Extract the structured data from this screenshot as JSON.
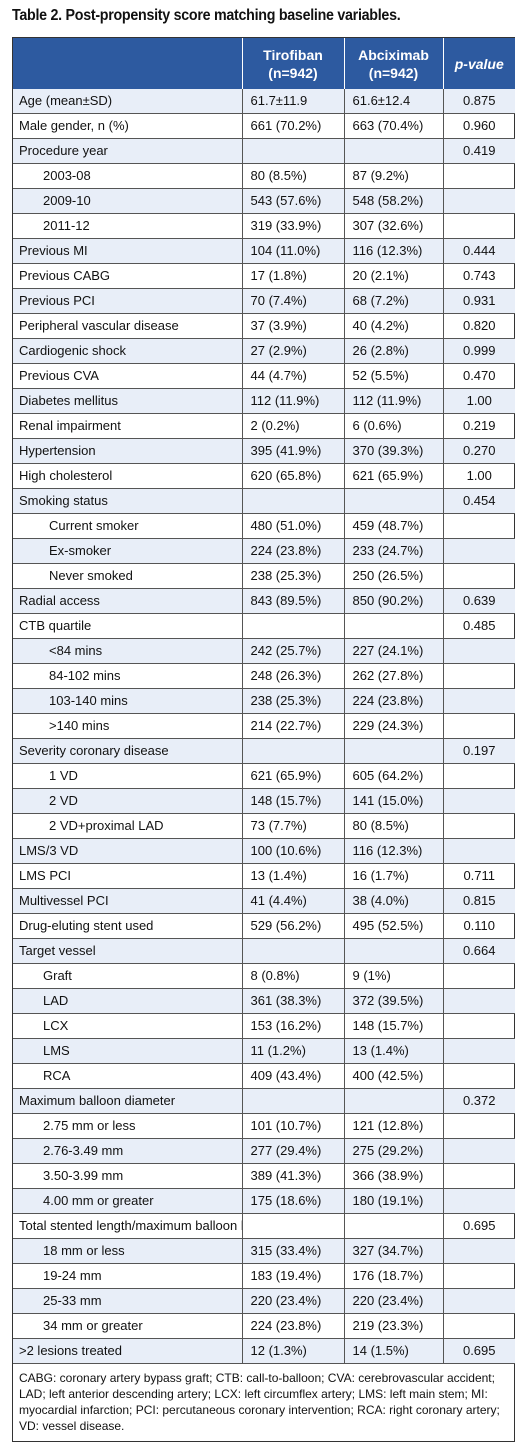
{
  "caption": "Table 2. Post-propensity score matching baseline variables.",
  "header": {
    "col1": "",
    "col2_line1": "Tirofiban",
    "col2_line2": "(n=942)",
    "col3_line1": "Abciximab",
    "col3_line2": "(n=942)",
    "col4": "p-value"
  },
  "rows": [
    {
      "label": "Age (mean±SD)",
      "tirofiban": "61.7±11.9",
      "abciximab": "61.6±12.4",
      "p": "0.875",
      "indent": 0,
      "shaded": true
    },
    {
      "label": "Male gender, n (%)",
      "tirofiban": "661 (70.2%)",
      "abciximab": "663 (70.4%)",
      "p": "0.960",
      "indent": 0,
      "shaded": false
    },
    {
      "label": "Procedure year",
      "tirofiban": "",
      "abciximab": "",
      "p": "0.419",
      "indent": 0,
      "shaded": true
    },
    {
      "label": "2003-08",
      "tirofiban": "80 (8.5%)",
      "abciximab": "87 (9.2%)",
      "p": "",
      "indent": 1,
      "shaded": false
    },
    {
      "label": "2009-10",
      "tirofiban": "543 (57.6%)",
      "abciximab": "548 (58.2%)",
      "p": "",
      "indent": 1,
      "shaded": true
    },
    {
      "label": "2011-12",
      "tirofiban": "319 (33.9%)",
      "abciximab": "307 (32.6%)",
      "p": "",
      "indent": 1,
      "shaded": false
    },
    {
      "label": "Previous MI",
      "tirofiban": "104 (11.0%)",
      "abciximab": "116 (12.3%)",
      "p": "0.444",
      "indent": 0,
      "shaded": true
    },
    {
      "label": "Previous CABG",
      "tirofiban": "17 (1.8%)",
      "abciximab": "20 (2.1%)",
      "p": "0.743",
      "indent": 0,
      "shaded": false
    },
    {
      "label": "Previous PCI",
      "tirofiban": "70 (7.4%)",
      "abciximab": "68 (7.2%)",
      "p": "0.931",
      "indent": 0,
      "shaded": true
    },
    {
      "label": "Peripheral vascular disease",
      "tirofiban": "37 (3.9%)",
      "abciximab": "40 (4.2%)",
      "p": "0.820",
      "indent": 0,
      "shaded": false
    },
    {
      "label": "Cardiogenic shock",
      "tirofiban": "27 (2.9%)",
      "abciximab": "26 (2.8%)",
      "p": "0.999",
      "indent": 0,
      "shaded": true
    },
    {
      "label": "Previous CVA",
      "tirofiban": "44 (4.7%)",
      "abciximab": "52 (5.5%)",
      "p": "0.470",
      "indent": 0,
      "shaded": false
    },
    {
      "label": "Diabetes mellitus",
      "tirofiban": "112 (11.9%)",
      "abciximab": "112 (11.9%)",
      "p": "1.00",
      "indent": 0,
      "shaded": true
    },
    {
      "label": "Renal impairment",
      "tirofiban": "2 (0.2%)",
      "abciximab": "6 (0.6%)",
      "p": "0.219",
      "indent": 0,
      "shaded": false
    },
    {
      "label": "Hypertension",
      "tirofiban": "395 (41.9%)",
      "abciximab": "370 (39.3%)",
      "p": "0.270",
      "indent": 0,
      "shaded": true
    },
    {
      "label": "High cholesterol",
      "tirofiban": "620 (65.8%)",
      "abciximab": "621 (65.9%)",
      "p": "1.00",
      "indent": 0,
      "shaded": false
    },
    {
      "label": "Smoking status",
      "tirofiban": "",
      "abciximab": "",
      "p": "0.454",
      "indent": 0,
      "shaded": true
    },
    {
      "label": "Current smoker",
      "tirofiban": "480 (51.0%)",
      "abciximab": "459 (48.7%)",
      "p": "",
      "indent": 2,
      "shaded": false
    },
    {
      "label": "Ex-smoker",
      "tirofiban": "224 (23.8%)",
      "abciximab": "233 (24.7%)",
      "p": "",
      "indent": 2,
      "shaded": true
    },
    {
      "label": "Never smoked",
      "tirofiban": "238 (25.3%)",
      "abciximab": "250 (26.5%)",
      "p": "",
      "indent": 2,
      "shaded": false
    },
    {
      "label": "Radial access",
      "tirofiban": "843 (89.5%)",
      "abciximab": "850 (90.2%)",
      "p": "0.639",
      "indent": 0,
      "shaded": true
    },
    {
      "label": "CTB quartile",
      "tirofiban": "",
      "abciximab": "",
      "p": "0.485",
      "indent": 0,
      "shaded": false
    },
    {
      "label": "<84 mins",
      "tirofiban": "242 (25.7%)",
      "abciximab": "227 (24.1%)",
      "p": "",
      "indent": 2,
      "shaded": true
    },
    {
      "label": "84-102 mins",
      "tirofiban": "248 (26.3%)",
      "abciximab": "262 (27.8%)",
      "p": "",
      "indent": 2,
      "shaded": false
    },
    {
      "label": "103-140 mins",
      "tirofiban": "238 (25.3%)",
      "abciximab": "224 (23.8%)",
      "p": "",
      "indent": 2,
      "shaded": true
    },
    {
      "label": ">140 mins",
      "tirofiban": "214 (22.7%)",
      "abciximab": "229 (24.3%)",
      "p": "",
      "indent": 2,
      "shaded": false
    },
    {
      "label": "Severity coronary disease",
      "tirofiban": "",
      "abciximab": "",
      "p": "0.197",
      "indent": 0,
      "shaded": true
    },
    {
      "label": "1 VD",
      "tirofiban": "621 (65.9%)",
      "abciximab": "605 (64.2%)",
      "p": "",
      "indent": 2,
      "shaded": false
    },
    {
      "label": "2 VD",
      "tirofiban": "148 (15.7%)",
      "abciximab": "141 (15.0%)",
      "p": "",
      "indent": 2,
      "shaded": true
    },
    {
      "label": "2 VD+proximal LAD",
      "tirofiban": "73 (7.7%)",
      "abciximab": "80 (8.5%)",
      "p": "",
      "indent": 2,
      "shaded": false
    },
    {
      "label": "LMS/3 VD",
      "tirofiban": "100 (10.6%)",
      "abciximab": "116 (12.3%)",
      "p": "",
      "indent": 0,
      "shaded": true
    },
    {
      "label": "LMS PCI",
      "tirofiban": "13 (1.4%)",
      "abciximab": "16 (1.7%)",
      "p": "0.711",
      "indent": 0,
      "shaded": false
    },
    {
      "label": "Multivessel PCI",
      "tirofiban": "41 (4.4%)",
      "abciximab": "38 (4.0%)",
      "p": "0.815",
      "indent": 0,
      "shaded": true
    },
    {
      "label": "Drug-eluting stent used",
      "tirofiban": "529 (56.2%)",
      "abciximab": "495 (52.5%)",
      "p": "0.110",
      "indent": 0,
      "shaded": false
    },
    {
      "label": "Target vessel",
      "tirofiban": "",
      "abciximab": "",
      "p": "0.664",
      "indent": 0,
      "shaded": true
    },
    {
      "label": "Graft",
      "tirofiban": "8 (0.8%)",
      "abciximab": "9 (1%)",
      "p": "",
      "indent": 1,
      "shaded": false
    },
    {
      "label": "LAD",
      "tirofiban": "361 (38.3%)",
      "abciximab": "372 (39.5%)",
      "p": "",
      "indent": 1,
      "shaded": true
    },
    {
      "label": "LCX",
      "tirofiban": "153 (16.2%)",
      "abciximab": "148 (15.7%)",
      "p": "",
      "indent": 1,
      "shaded": false
    },
    {
      "label": "LMS",
      "tirofiban": "11 (1.2%)",
      "abciximab": "13 (1.4%)",
      "p": "",
      "indent": 1,
      "shaded": true
    },
    {
      "label": "RCA",
      "tirofiban": "409 (43.4%)",
      "abciximab": "400 (42.5%)",
      "p": "",
      "indent": 1,
      "shaded": false
    },
    {
      "label": "Maximum balloon diameter",
      "tirofiban": "",
      "abciximab": "",
      "p": "0.372",
      "indent": 0,
      "shaded": true
    },
    {
      "label": "2.75 mm or less",
      "tirofiban": "101 (10.7%)",
      "abciximab": "121 (12.8%)",
      "p": "",
      "indent": 1,
      "shaded": false
    },
    {
      "label": "2.76-3.49 mm",
      "tirofiban": "277 (29.4%)",
      "abciximab": "275 (29.2%)",
      "p": "",
      "indent": 1,
      "shaded": true
    },
    {
      "label": "3.50-3.99 mm",
      "tirofiban": "389 (41.3%)",
      "abciximab": "366 (38.9%)",
      "p": "",
      "indent": 1,
      "shaded": false
    },
    {
      "label": "4.00 mm or greater",
      "tirofiban": "175 (18.6%)",
      "abciximab": "180 (19.1%)",
      "p": "",
      "indent": 1,
      "shaded": true
    },
    {
      "label": "Total stented length/maximum balloon length",
      "tirofiban": "",
      "abciximab": "",
      "p": "0.695",
      "indent": 0,
      "shaded": false
    },
    {
      "label": "18 mm or less",
      "tirofiban": "315 (33.4%)",
      "abciximab": "327 (34.7%)",
      "p": "",
      "indent": 1,
      "shaded": true
    },
    {
      "label": "19-24 mm",
      "tirofiban": "183 (19.4%)",
      "abciximab": "176 (18.7%)",
      "p": "",
      "indent": 1,
      "shaded": false
    },
    {
      "label": "25-33 mm",
      "tirofiban": "220 (23.4%)",
      "abciximab": "220 (23.4%)",
      "p": "",
      "indent": 1,
      "shaded": true
    },
    {
      "label": "34 mm or greater",
      "tirofiban": "224 (23.8%)",
      "abciximab": "219 (23.3%)",
      "p": "",
      "indent": 1,
      "shaded": false
    },
    {
      "label": ">2 lesions treated",
      "tirofiban": "12 (1.3%)",
      "abciximab": "14 (1.5%)",
      "p": "0.695",
      "indent": 0,
      "shaded": true
    }
  ],
  "footnote": "CABG: coronary artery bypass graft; CTB: call-to-balloon; CVA: cerebrovascular accident; LAD; left anterior descending artery; LCX: left circumflex artery; LMS: left main stem; MI: myocardial infarction; PCI: percutaneous coronary intervention; RCA: right coronary artery; VD: vessel disease.",
  "colors": {
    "header_bg": "#2d5aa0",
    "row_shade": "#e8eef8"
  }
}
